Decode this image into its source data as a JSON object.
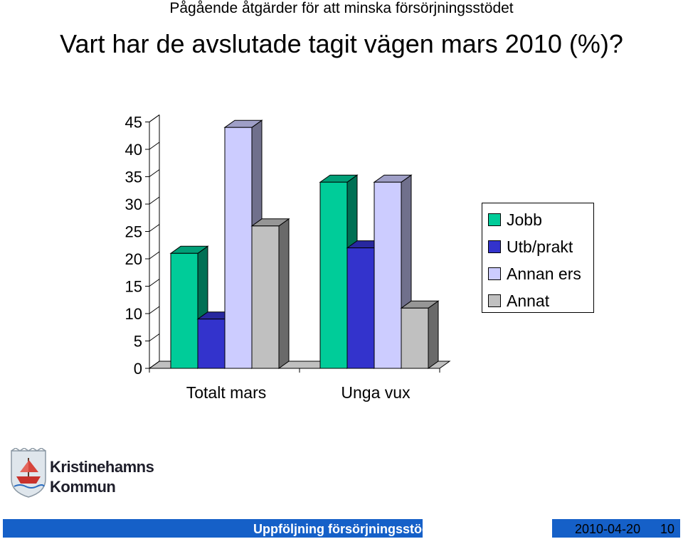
{
  "header": {
    "subtitle": "Pågående åtgärder för att minska försörjningsstödet",
    "title": "Vart har de avslutade tagit vägen mars 2010 (%)?"
  },
  "chart_data": {
    "type": "bar",
    "categories": [
      "Totalt mars",
      "Unga vux"
    ],
    "series": [
      {
        "name": "Jobb",
        "values": [
          21,
          34
        ],
        "color": "#00cc99"
      },
      {
        "name": "Utb/prakt",
        "values": [
          9,
          22
        ],
        "color": "#3333cc"
      },
      {
        "name": "Annan ers",
        "values": [
          44,
          34
        ],
        "color": "#ccccff"
      },
      {
        "name": "Annat",
        "values": [
          26,
          11
        ],
        "color": "#c0c0c0"
      }
    ],
    "ylim": [
      0,
      45
    ],
    "yticks": [
      "0",
      "5",
      "10",
      "15",
      "20",
      "25",
      "30",
      "35",
      "40",
      "45"
    ],
    "grid": false,
    "legend_position": "right",
    "style": "3d-clustered-bar"
  },
  "logo": {
    "line1": "Kristinehamns",
    "line2": "Kommun",
    "icon": "coat-of-arms-ship-icon"
  },
  "footer": {
    "left_text": "Uppföljning försörjningsstöd",
    "date": "2010-04-20",
    "page": "10",
    "bar_color": "#1560c8"
  }
}
